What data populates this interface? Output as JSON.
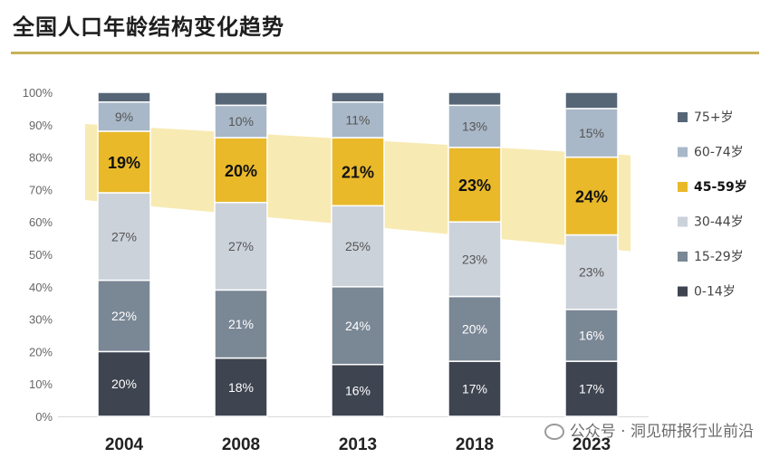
{
  "title": "全国人口年龄结构变化趋势",
  "watermark_text": "公众号 · 洞见研报行业前沿",
  "chart_data": {
    "type": "bar",
    "stacked": true,
    "categories": [
      "2004",
      "2008",
      "2013",
      "2018",
      "2023"
    ],
    "ylim": [
      0,
      100
    ],
    "yticks": [
      "0%",
      "10%",
      "20%",
      "30%",
      "40%",
      "50%",
      "60%",
      "70%",
      "80%",
      "90%",
      "100%"
    ],
    "series": [
      {
        "name": "0-14岁",
        "color": "#3e4450",
        "values": [
          20,
          18,
          16,
          17,
          17
        ],
        "labels": [
          "20%",
          "18%",
          "16%",
          "17%",
          "17%"
        ]
      },
      {
        "name": "15-29岁",
        "color": "#7a8795",
        "values": [
          22,
          21,
          24,
          20,
          16
        ],
        "labels": [
          "22%",
          "21%",
          "24%",
          "20%",
          "16%"
        ]
      },
      {
        "name": "30-44岁",
        "color": "#ccd2da",
        "values": [
          27,
          27,
          25,
          23,
          23
        ],
        "labels": [
          "27%",
          "27%",
          "25%",
          "23%",
          "23%"
        ]
      },
      {
        "name": "45-59岁",
        "color": "#e9b92a",
        "values": [
          19,
          20,
          21,
          23,
          24
        ],
        "labels": [
          "19%",
          "20%",
          "21%",
          "23%",
          "24%"
        ]
      },
      {
        "name": "60-74岁",
        "color": "#a9b8c8",
        "values": [
          9,
          10,
          11,
          13,
          15
        ],
        "labels": [
          "9%",
          "10%",
          "11%",
          "13%",
          "15%"
        ]
      },
      {
        "name": "75+岁",
        "color": "#566677",
        "values": [
          3,
          4,
          3,
          4,
          5
        ],
        "labels": [
          "",
          "",
          "",
          "",
          ""
        ]
      }
    ],
    "legend": {
      "placement": "right",
      "order": [
        "75+岁",
        "60-74岁",
        "45-59岁",
        "30-44岁",
        "15-29岁",
        "0-14岁"
      ]
    },
    "highlight_band": {
      "series": "45-59岁",
      "color": "#f6e39a"
    }
  }
}
